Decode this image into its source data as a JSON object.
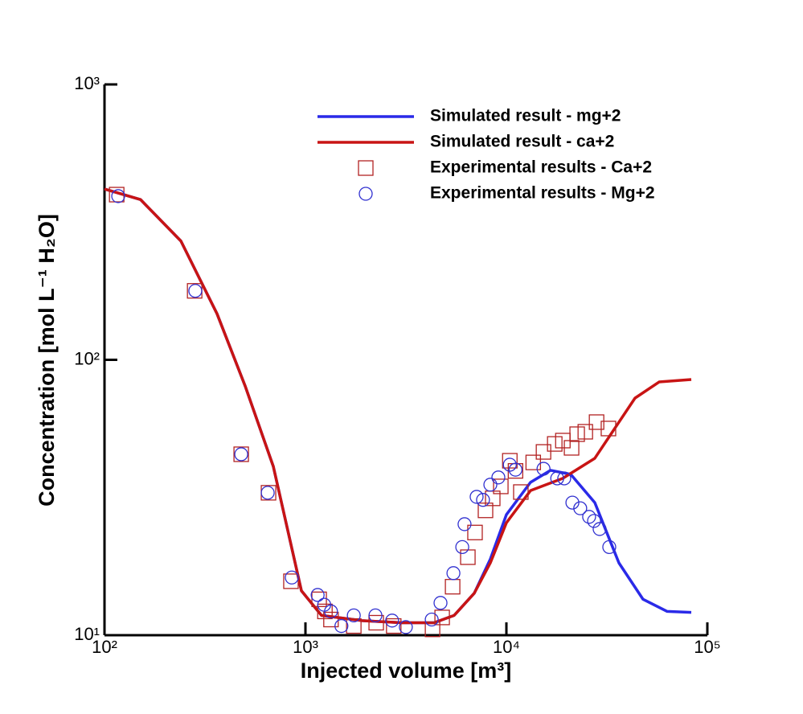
{
  "chart_data": {
    "type": "line",
    "xlabel": "Injected volume [m³]",
    "ylabel": "Concentration [mol L⁻¹ H₂O]",
    "xscale": "log",
    "yscale": "log",
    "xlim": [
      100,
      100000
    ],
    "ylim": [
      10,
      1000
    ],
    "xticks": [
      {
        "value": 100,
        "label": "10²"
      },
      {
        "value": 1000,
        "label": "10³"
      },
      {
        "value": 10000,
        "label": "10⁴"
      },
      {
        "value": 100000,
        "label": "10⁵"
      }
    ],
    "yticks": [
      {
        "value": 10,
        "label": "10¹"
      },
      {
        "value": 100,
        "label": "10²"
      },
      {
        "value": 1000,
        "label": "10³"
      }
    ],
    "legend": "upper right",
    "series": [
      {
        "name": "Simulated result - mg+2",
        "color": "#2a2ae8",
        "style": "line",
        "x": [
          100,
          151,
          240,
          363,
          501,
          692,
          955,
          1202,
          1905,
          3020,
          4365,
          5495,
          6918,
          8318,
          10000,
          13183,
          16596,
          20893,
          27542,
          36308,
          47863,
          63096,
          83176
        ],
        "values": [
          417,
          382,
          270,
          147,
          80.4,
          41,
          14.5,
          11.8,
          11.3,
          11.1,
          11.1,
          11.8,
          14.2,
          18.9,
          27.4,
          35.9,
          39.7,
          38.4,
          30.3,
          18.3,
          13.5,
          12.2,
          12.1
        ]
      },
      {
        "name": "Simulated result - ca+2",
        "color": "#c81414",
        "style": "line",
        "x": [
          100,
          151,
          240,
          363,
          501,
          692,
          955,
          1202,
          1905,
          3020,
          4365,
          5495,
          6918,
          8318,
          10000,
          13183,
          19055,
          27542,
          33113,
          43652,
          57544,
          83176
        ],
        "values": [
          417,
          382,
          270,
          147,
          80.4,
          41,
          14.5,
          11.8,
          11.3,
          11.1,
          11.1,
          11.8,
          14.2,
          18.3,
          25.6,
          33.5,
          37.1,
          43.9,
          53.7,
          72.6,
          83.1,
          84.8
        ]
      },
      {
        "name": "Experimental results - Ca+2",
        "color": "#b22222",
        "style": "marker",
        "marker": "square",
        "x": [
          115,
          281,
          479,
          655,
          847,
          1170,
          1250,
          1340,
          1740,
          2250,
          2750,
          4290,
          4790,
          5400,
          6430,
          6980,
          7870,
          8550,
          9380,
          10400,
          11100,
          11800,
          13600,
          15300,
          17400,
          19100,
          21100,
          22500,
          24700,
          28100,
          32200
        ],
        "values": [
          398,
          178,
          45.4,
          32.9,
          15.7,
          13.5,
          12.2,
          11.4,
          10.8,
          11.1,
          10.8,
          10.5,
          11.6,
          15.0,
          19.2,
          23.6,
          28.4,
          31.4,
          34.7,
          43.0,
          39.5,
          33.1,
          42.4,
          46.3,
          49.5,
          50.9,
          47.9,
          53.7,
          54.8,
          59.4,
          56.3
        ]
      },
      {
        "name": "Experimental results - Mg+2",
        "color": "#3030d0",
        "style": "marker",
        "marker": "circle",
        "x": [
          117,
          283,
          479,
          649,
          855,
          1150,
          1240,
          1340,
          1510,
          1740,
          2230,
          2700,
          3160,
          4250,
          4700,
          5450,
          6030,
          6190,
          7110,
          7650,
          8320,
          9120,
          10400,
          11100,
          15300,
          17900,
          19400,
          21300,
          23300,
          25800,
          27300,
          29100,
          32500
        ],
        "values": [
          393,
          178,
          45.4,
          32.9,
          16.2,
          14.0,
          12.9,
          12.2,
          10.8,
          11.8,
          11.8,
          11.3,
          10.7,
          11.4,
          13.1,
          16.8,
          20.9,
          25.3,
          31.8,
          31.0,
          35.2,
          37.4,
          41.6,
          39.9,
          40.2,
          37.1,
          37.1,
          30.3,
          28.9,
          26.9,
          26.0,
          24.3,
          20.9
        ]
      }
    ]
  }
}
